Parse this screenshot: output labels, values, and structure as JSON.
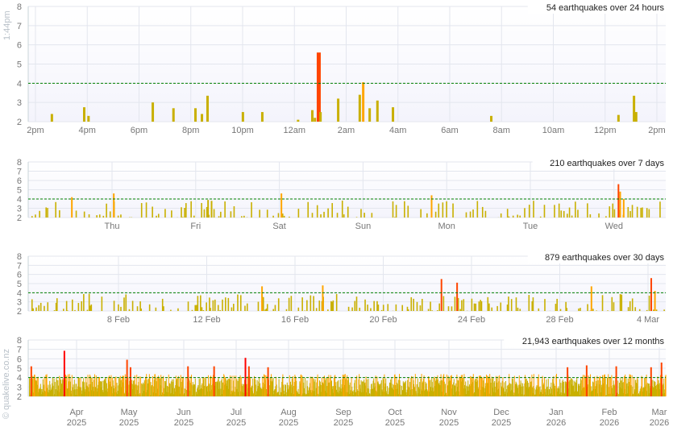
{
  "side_time": "1:44pm",
  "copyright": "© quakelive.co.nz",
  "colors": {
    "minor": "#c9b000",
    "moderate": "#ffa500",
    "strong": "#ff4500",
    "major": "#ff0000",
    "threshold": "#008000",
    "grid": "#e3e6ee",
    "plot_bg": "#f4f4fc"
  },
  "chart_data": [
    {
      "type": "bar",
      "title": "54 earthquakes over 24 hours",
      "ylim": [
        2,
        8
      ],
      "yticks": [
        2,
        3,
        4,
        5,
        6,
        7,
        8
      ],
      "threshold": 4,
      "xticks": [
        "2pm",
        "4pm",
        "6pm",
        "8pm",
        "10pm",
        "12am",
        "2am",
        "4am",
        "6am",
        "8am",
        "10am",
        "12pm",
        "2pm"
      ],
      "events": [
        [
          "14:39",
          2.4
        ],
        [
          "15:54",
          2.75
        ],
        [
          "16:04",
          2.3
        ],
        [
          "18:33",
          3.0
        ],
        [
          "19:21",
          2.7
        ],
        [
          "20:12",
          2.7
        ],
        [
          "20:27",
          2.4
        ],
        [
          "20:40",
          3.35
        ],
        [
          "22:02",
          2.5
        ],
        [
          "22:47",
          2.5
        ],
        [
          "00:10",
          2.1
        ],
        [
          "00:43",
          2.6
        ],
        [
          "00:49",
          2.2
        ],
        [
          "00:56",
          5.6
        ],
        [
          "01:02",
          2.5
        ],
        [
          "01:43",
          3.2
        ],
        [
          "02:33",
          3.4
        ],
        [
          "02:41",
          4.05
        ],
        [
          "02:56",
          2.7
        ],
        [
          "03:14",
          3.1
        ],
        [
          "03:50",
          2.75
        ],
        [
          "07:38",
          2.3
        ],
        [
          "12:33",
          2.35
        ],
        [
          "13:09",
          3.35
        ],
        [
          "13:14",
          2.5
        ]
      ]
    },
    {
      "type": "bar",
      "title": "210 earthquakes over 7 days",
      "ylim": [
        2,
        8
      ],
      "yticks": [
        2,
        3,
        4,
        5,
        6,
        7,
        8
      ],
      "threshold": 4,
      "xticks": [
        "Thu",
        "Fri",
        "Sat",
        "Sun",
        "Mon",
        "Tue",
        "Wed"
      ],
      "events": [
        [
          "Wed 12:30",
          4.2
        ],
        [
          "Thu 00:30",
          4.6
        ],
        [
          "Fri 03:30",
          3.9
        ],
        [
          "Fri 04:30",
          3.8
        ],
        [
          "Sat 00:30",
          4.6
        ],
        [
          "Sun 19:30",
          4.4
        ],
        [
          "Wed 01:00",
          5.6
        ],
        [
          "Wed 01:30",
          4.8
        ],
        [
          "Wed 02:30",
          4.0
        ]
      ]
    },
    {
      "type": "bar",
      "title": "879 earthquakes over 30 days",
      "ylim": [
        2,
        8
      ],
      "yticks": [
        2,
        3,
        4,
        5,
        6,
        7,
        8
      ],
      "threshold": 4,
      "xticks": [
        "8 Feb",
        "12 Feb",
        "16 Feb",
        "20 Feb",
        "24 Feb",
        "28 Feb",
        "4 Mar"
      ],
      "events": [
        [
          "22 Feb 15:00",
          5.5
        ],
        [
          "23 Feb 08:00",
          5.1
        ],
        [
          "4 Mar 03:00",
          5.6
        ],
        [
          "4 Mar 07:00",
          4.2
        ],
        [
          "14 Feb 12:00",
          4.7
        ],
        [
          "17 Feb 06:00",
          4.8
        ],
        [
          "1 Mar 10:00",
          4.7
        ]
      ]
    },
    {
      "type": "bar",
      "title": "21,943 earthquakes over 12 months",
      "ylim": [
        2,
        8
      ],
      "yticks": [
        2,
        3,
        4,
        5,
        6,
        7,
        8
      ],
      "threshold": 4,
      "xticks": [
        [
          "Apr",
          "2025"
        ],
        [
          "May",
          "2025"
        ],
        [
          "Jun",
          "2025"
        ],
        [
          "Jul",
          "2025"
        ],
        [
          "Aug",
          "2025"
        ],
        [
          "Sep",
          "2025"
        ],
        [
          "Oct",
          "2025"
        ],
        [
          "Nov",
          "2025"
        ],
        [
          "Dec",
          "2025"
        ],
        [
          "Jan",
          "2026"
        ],
        [
          "Feb",
          "2026"
        ],
        [
          "Mar",
          "2026"
        ]
      ],
      "events": [
        [
          "2025-03-06",
          5.2
        ],
        [
          "2025-03-25",
          6.85
        ],
        [
          "2025-04-30",
          5.9
        ],
        [
          "2025-05-02",
          5.1
        ],
        [
          "2025-06-04",
          5.2
        ],
        [
          "2025-06-19",
          5.2
        ],
        [
          "2025-07-07",
          6.1
        ],
        [
          "2025-07-09",
          5.2
        ],
        [
          "2025-07-20",
          5.1
        ],
        [
          "2026-01-08",
          5.1
        ],
        [
          "2026-01-19",
          5.3
        ],
        [
          "2026-02-05",
          5.2
        ],
        [
          "2026-02-25",
          5.1
        ],
        [
          "2026-03-03",
          5.6
        ]
      ]
    }
  ]
}
